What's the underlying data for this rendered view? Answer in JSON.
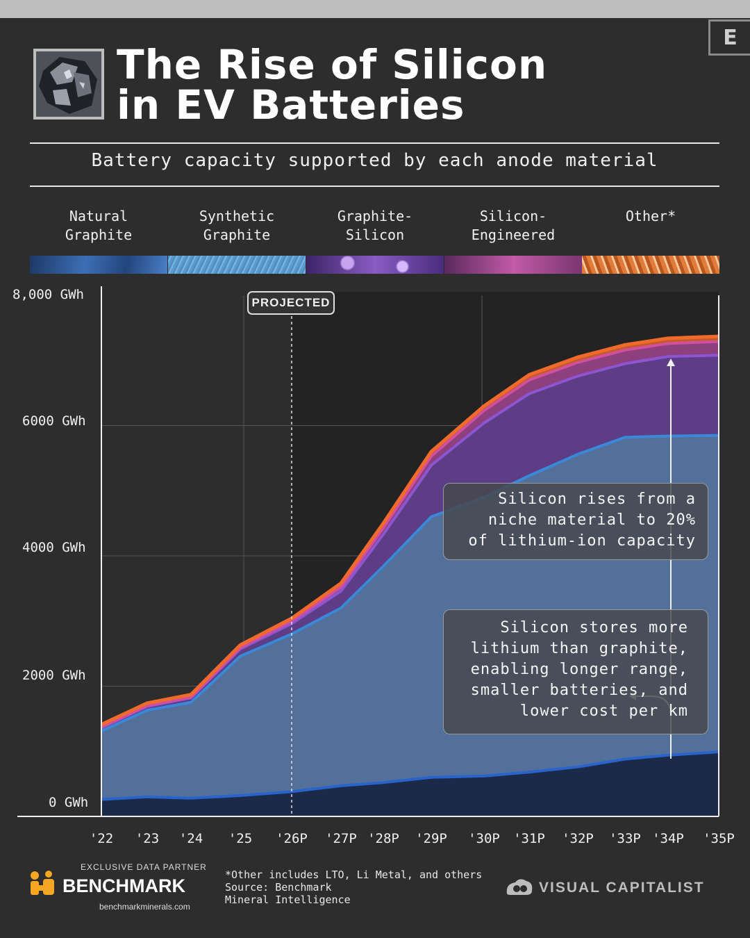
{
  "header": {
    "title_line1": "The Rise of Silicon",
    "title_line2": "in EV Batteries",
    "subtitle": "Battery capacity supported by each anode material",
    "brand_mark": "E"
  },
  "legend": [
    {
      "line1": "Natural",
      "line2": "Graphite",
      "color": "#3d6fb5"
    },
    {
      "line1": "Synthetic",
      "line2": "Graphite",
      "color": "#6aa7d6"
    },
    {
      "line1": "Graphite-",
      "line2": "Silicon",
      "color": "#8a5cc4"
    },
    {
      "line1": "Silicon-",
      "line2": "Engineered",
      "color": "#c25aa8"
    },
    {
      "line1": "",
      "line2": "Other*",
      "color": "#e07b3a"
    }
  ],
  "chart_data": {
    "type": "area",
    "stacked": true,
    "x": [
      "'22",
      "'23",
      "'24",
      "'25",
      "'26P",
      "'27P",
      "'28P",
      "'29P",
      "'30P",
      "'31P",
      "'32P",
      "'33P",
      "'34P",
      "'35P"
    ],
    "y_ticks": [
      "0 GWh",
      "2000 GWh",
      "4000 GWh",
      "6000 GWh",
      "8,000 GWh"
    ],
    "ylim": [
      0,
      8000
    ],
    "projected_from": "'26P",
    "projected_label": "PROJECTED",
    "series": [
      {
        "name": "Natural Graphite",
        "color": "#2a63c9",
        "values": [
          260,
          300,
          280,
          320,
          380,
          470,
          520,
          600,
          620,
          680,
          760,
          880,
          940,
          990
        ]
      },
      {
        "name": "Synthetic Graphite",
        "color": "#3b88d8",
        "values": [
          1050,
          1330,
          1470,
          2140,
          2420,
          2730,
          3320,
          4000,
          4280,
          4550,
          4800,
          4940,
          4900,
          4860
        ]
      },
      {
        "name": "Graphite-Silicon",
        "color": "#8d55d0",
        "values": [
          50,
          60,
          70,
          110,
          160,
          260,
          490,
          790,
          1140,
          1260,
          1200,
          1130,
          1220,
          1230
        ]
      },
      {
        "name": "Silicon-Engineered",
        "color": "#d0509e",
        "values": [
          10,
          10,
          10,
          20,
          40,
          60,
          100,
          140,
          190,
          210,
          210,
          210,
          200,
          210
        ]
      },
      {
        "name": "Other*",
        "color": "#f06a2c",
        "values": [
          40,
          40,
          40,
          40,
          40,
          60,
          70,
          70,
          70,
          80,
          80,
          80,
          80,
          80
        ]
      }
    ],
    "annotations": [
      [
        "Silicon rises from a",
        "niche material to 20%",
        "of lithium-ion capacity"
      ],
      [
        "Silicon stores more",
        "lithium than graphite,",
        "enabling longer range,",
        "smaller batteries, and",
        "lower cost per km"
      ]
    ]
  },
  "footer": {
    "partner_label": "EXCLUSIVE DATA PARTNER",
    "partner_name": "BENCHMARK",
    "partner_url": "benchmarkminerals.com",
    "note_line1": "*Other includes LTO, Li Metal, and others",
    "note_line2": "Source: Benchmark",
    "note_line3": "Mineral Intelligence",
    "publisher": "VISUAL CAPITALIST"
  }
}
